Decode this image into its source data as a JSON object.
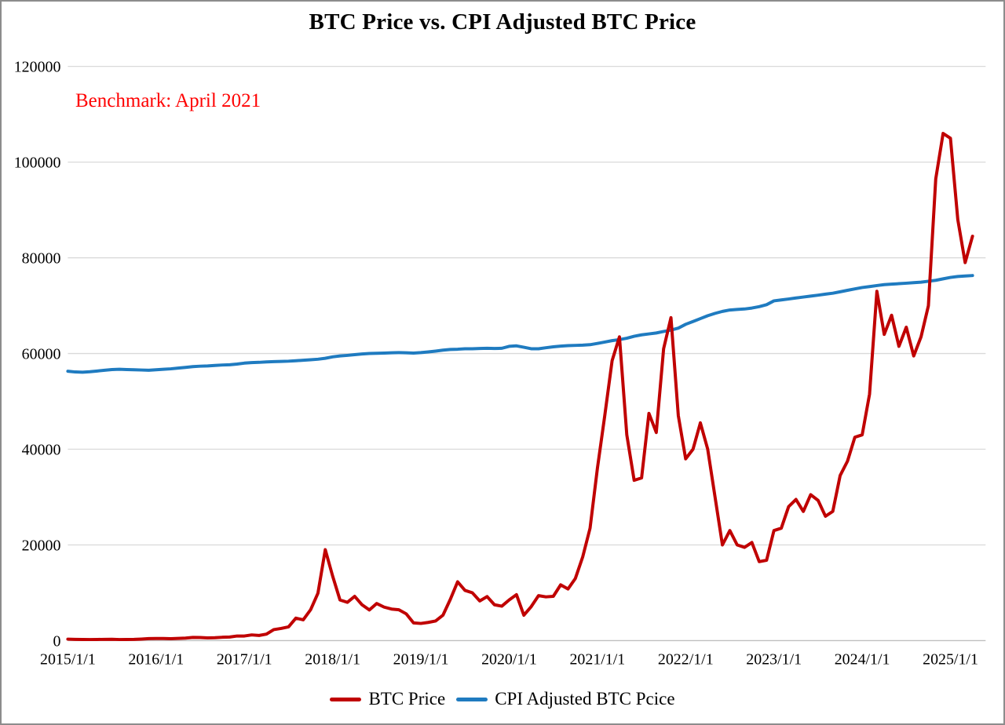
{
  "title": "BTC Price vs. CPI Adjusted BTC Price",
  "annotation": {
    "text": "Benchmark: April 2021",
    "color": "#ff0000"
  },
  "legend": {
    "items": [
      {
        "label": "BTC Price",
        "color": "#c00000"
      },
      {
        "label": "CPI Adjusted BTC Pcice",
        "color": "#1f7bc0"
      }
    ]
  },
  "colors": {
    "btc_line": "#c00000",
    "cpi_line": "#1f7bc0",
    "gridline": "#d9d9d9",
    "axis_line": "#bfbfbf",
    "annotation_red": "#ff0000",
    "border_gray": "#8c8c8c"
  },
  "chart_data": {
    "type": "line",
    "title": "BTC Price vs. CPI Adjusted BTC Price",
    "xlabel": "",
    "ylabel": "",
    "x_axis": {
      "start_month": "2015-01",
      "step": "month",
      "points_per_series": 124,
      "tick_labels": [
        "2015/1/1",
        "2016/1/1",
        "2017/1/1",
        "2018/1/1",
        "2019/1/1",
        "2020/1/1",
        "2021/1/1",
        "2022/1/1",
        "2023/1/1",
        "2024/1/1",
        "2025/1/1"
      ]
    },
    "y_axis": {
      "min": 0,
      "max": 120000,
      "tick_step": 20000,
      "tick_labels": [
        "0",
        "20000",
        "40000",
        "60000",
        "80000",
        "100000",
        "120000"
      ]
    },
    "grid": "horizontal",
    "legend_position": "bottom-center",
    "annotation": "Benchmark: April 2021",
    "series": [
      {
        "name": "BTC Price",
        "color": "#c00000",
        "values": [
          315,
          255,
          245,
          235,
          240,
          263,
          285,
          230,
          237,
          265,
          330,
          430,
          435,
          440,
          416,
          450,
          530,
          670,
          655,
          575,
          610,
          700,
          745,
          960,
          970,
          1190,
          1080,
          1350,
          2300,
          2550,
          2870,
          4700,
          4340,
          6450,
          9900,
          19000,
          13500,
          8500,
          8000,
          9250,
          7500,
          6400,
          7750,
          7000,
          6600,
          6450,
          5600,
          3700,
          3600,
          3800,
          4100,
          5300,
          8600,
          12300,
          10500,
          10000,
          8300,
          9200,
          7500,
          7200,
          8500,
          9600,
          5300,
          7100,
          9400,
          9150,
          9250,
          11650,
          10800,
          13000,
          17500,
          23500,
          36000,
          47000,
          58500,
          63500,
          43000,
          33500,
          34000,
          47500,
          43500,
          61000,
          67500,
          47000,
          38000,
          40000,
          45500,
          40000,
          30000,
          20000,
          23000,
          20000,
          19500,
          20500,
          16500,
          16800,
          23000,
          23500,
          28000,
          29500,
          27000,
          30500,
          29300,
          26000,
          27000,
          34500,
          37500,
          42500,
          43000,
          51500,
          73000,
          64000,
          68000,
          61500,
          65500,
          59500,
          63500,
          70000,
          96500,
          106000,
          105000,
          88000,
          79000,
          84500
        ]
      },
      {
        "name": "CPI Adjusted BTC Pcice",
        "color": "#1f7bc0",
        "values": [
          56300,
          56150,
          56100,
          56200,
          56350,
          56500,
          56650,
          56700,
          56650,
          56600,
          56550,
          56500,
          56600,
          56700,
          56800,
          56950,
          57100,
          57250,
          57350,
          57400,
          57500,
          57600,
          57650,
          57800,
          58000,
          58100,
          58150,
          58250,
          58300,
          58350,
          58400,
          58500,
          58600,
          58700,
          58800,
          59000,
          59300,
          59500,
          59600,
          59750,
          59900,
          60000,
          60050,
          60100,
          60150,
          60200,
          60150,
          60100,
          60200,
          60350,
          60500,
          60700,
          60850,
          60900,
          61000,
          61000,
          61050,
          61100,
          61050,
          61100,
          61500,
          61600,
          61300,
          61000,
          61000,
          61200,
          61400,
          61550,
          61650,
          61700,
          61750,
          61850,
          62100,
          62400,
          62700,
          62900,
          63200,
          63600,
          63900,
          64100,
          64300,
          64600,
          64900,
          65300,
          66100,
          66700,
          67300,
          67900,
          68400,
          68800,
          69100,
          69200,
          69300,
          69500,
          69800,
          70200,
          71000,
          71200,
          71400,
          71600,
          71800,
          72000,
          72200,
          72400,
          72600,
          72900,
          73200,
          73500,
          73800,
          74000,
          74200,
          74400,
          74500,
          74600,
          74700,
          74800,
          74900,
          75100,
          75300,
          75600,
          75900,
          76100,
          76200,
          76300
        ]
      }
    ]
  }
}
